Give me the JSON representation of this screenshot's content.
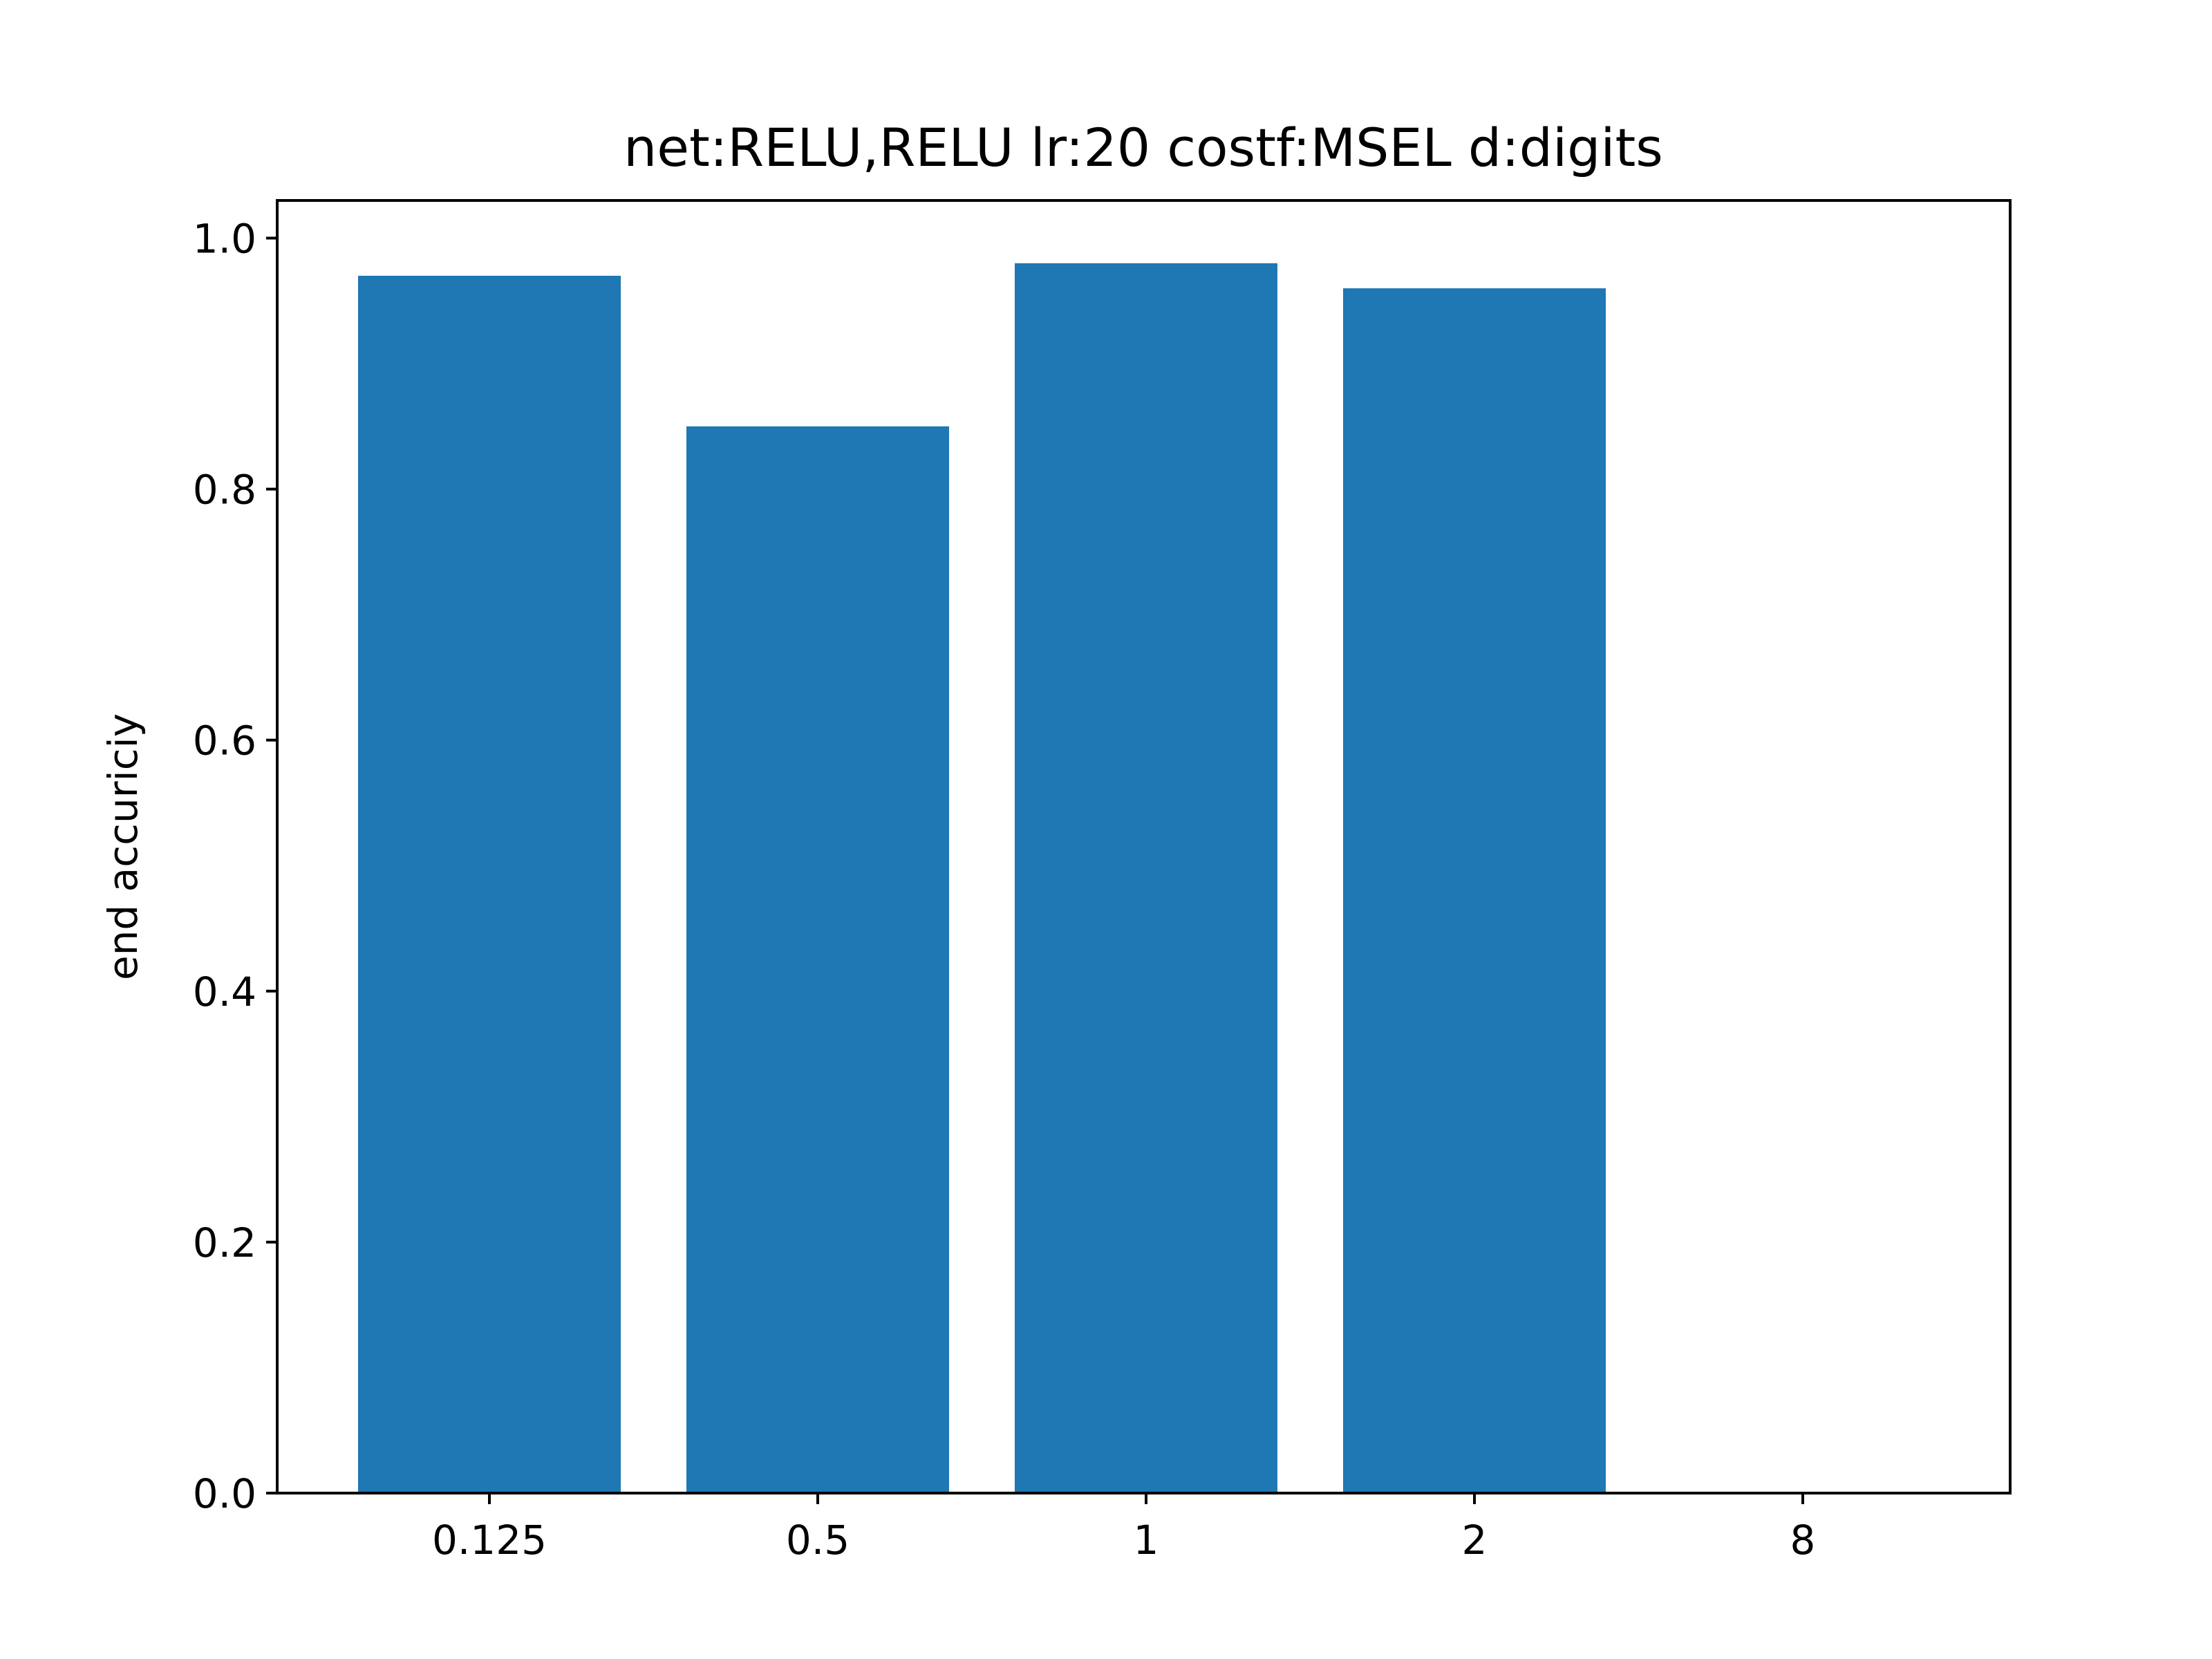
{
  "chart_data": {
    "type": "bar",
    "title": "net:RELU,RELU lr:20 costf:MSEL d:digits",
    "xlabel": "",
    "ylabel": "end accuriciy",
    "categories": [
      "0.125",
      "0.5",
      "1",
      "2",
      "8"
    ],
    "values": [
      0.97,
      0.85,
      0.98,
      0.96,
      0.0
    ],
    "ylim": [
      0.0,
      1.03
    ],
    "yticks": [
      "0.0",
      "0.2",
      "0.4",
      "0.6",
      "0.8",
      "1.0"
    ],
    "grid": false,
    "legend": "none",
    "bar_color": "#1f77b4"
  }
}
